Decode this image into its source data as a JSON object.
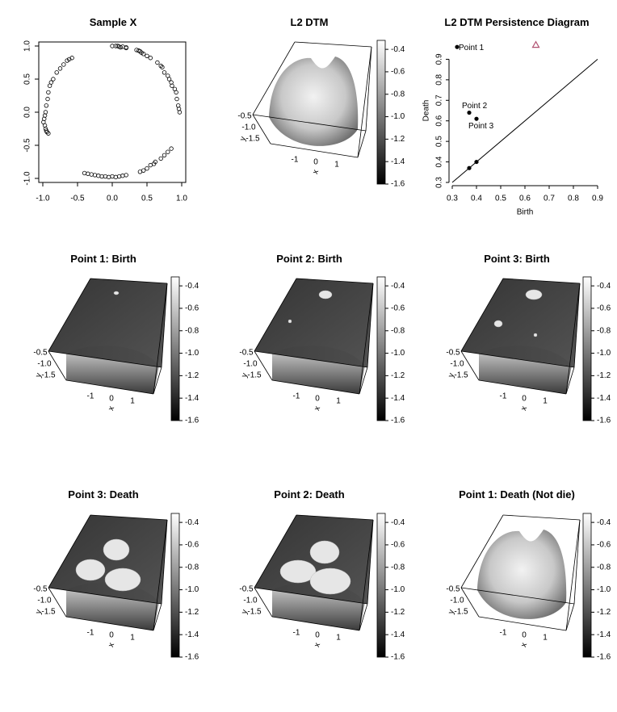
{
  "panels": {
    "sample": {
      "title": "Sample X"
    },
    "dtm": {
      "title": "L2 DTM"
    },
    "pd": {
      "title": "L2 DTM Persistence Diagram"
    },
    "b1": {
      "title": "Point 1: Birth"
    },
    "b2": {
      "title": "Point 2: Birth"
    },
    "b3": {
      "title": "Point 3: Birth"
    },
    "d3": {
      "title": "Point 3: Death"
    },
    "d2": {
      "title": "Point 2: Death"
    },
    "d1": {
      "title": "Point 1: Death (Not die)"
    }
  },
  "colorbar": {
    "ticks": [
      "-0.4",
      "-0.6",
      "-0.8",
      "-1.0",
      "-1.2",
      "-1.4",
      "-1.6"
    ]
  },
  "surface_axis": {
    "y_ticks": [
      "-0.5",
      "-1.0",
      "-1.5"
    ],
    "x_ticks": [
      "-1",
      "0",
      "1"
    ],
    "x_label": "x",
    "y_label": "y"
  },
  "chart_data": [
    {
      "type": "scatter",
      "title": "Sample X",
      "xlim": [
        -1,
        1
      ],
      "ylim": [
        -1,
        1
      ],
      "x_ticks": [
        "-1.0",
        "-0.5",
        "0.0",
        "0.5",
        "1.0"
      ],
      "y_ticks": [
        "-1.0",
        "-0.5",
        "0.0",
        "0.5",
        "1.0"
      ],
      "x": [
        0.0,
        0.05,
        0.08,
        0.1,
        0.12,
        0.15,
        0.2,
        0.2,
        0.35,
        0.38,
        0.4,
        0.42,
        0.45,
        0.5,
        0.55,
        0.65,
        0.7,
        0.72,
        0.75,
        0.8,
        0.82,
        0.85,
        0.86,
        0.9,
        0.92,
        0.93,
        0.95,
        0.96,
        0.97,
        -0.58,
        -0.62,
        -0.65,
        -0.7,
        -0.75,
        -0.8,
        -0.85,
        -0.88,
        -0.9,
        -0.92,
        -0.93,
        -0.95,
        -0.96,
        -0.97,
        -0.98,
        -0.99,
        -0.97,
        -0.96,
        -0.95,
        -0.94,
        -0.92,
        0.4,
        0.45,
        0.5,
        0.55,
        0.6,
        0.62,
        0.7,
        0.75,
        0.8,
        0.85,
        0.0,
        0.05,
        0.1,
        0.15,
        0.2,
        -0.05,
        -0.1,
        -0.15,
        -0.2,
        -0.25,
        -0.3,
        -0.35,
        -0.4
      ],
      "y": [
        1.0,
        1.0,
        1.0,
        0.99,
        0.98,
        0.99,
        0.98,
        0.97,
        0.94,
        0.93,
        0.92,
        0.9,
        0.88,
        0.85,
        0.82,
        0.75,
        0.7,
        0.68,
        0.6,
        0.55,
        0.5,
        0.45,
        0.4,
        0.35,
        0.3,
        0.2,
        0.1,
        0.05,
        0.0,
        0.82,
        0.8,
        0.78,
        0.72,
        0.66,
        0.6,
        0.5,
        0.45,
        0.4,
        0.3,
        0.2,
        0.1,
        0.0,
        -0.05,
        -0.1,
        -0.15,
        -0.2,
        -0.25,
        -0.28,
        -0.3,
        -0.32,
        -0.9,
        -0.88,
        -0.85,
        -0.8,
        -0.78,
        -0.75,
        -0.7,
        -0.65,
        -0.6,
        -0.55,
        -0.97,
        -0.98,
        -0.97,
        -0.96,
        -0.95,
        -0.98,
        -0.97,
        -0.97,
        -0.96,
        -0.95,
        -0.94,
        -0.93,
        -0.92
      ]
    },
    {
      "type": "surface",
      "title": "L2 DTM",
      "colorbar_ticks": [
        "-0.4",
        "-0.6",
        "-0.8",
        "-1.0",
        "-1.2",
        "-1.4",
        "-1.6"
      ]
    },
    {
      "type": "scatter",
      "title": "L2 DTM Persistence Diagram",
      "xlabel": "Birth",
      "ylabel": "Death",
      "xlim": [
        0.3,
        0.9
      ],
      "ylim": [
        0.3,
        1.0
      ],
      "x_ticks": [
        "0.3",
        "0.4",
        "0.5",
        "0.6",
        "0.7",
        "0.8",
        "0.9"
      ],
      "y_ticks": [
        "0.3",
        "0.4",
        "0.5",
        "0.6",
        "0.7",
        "0.8",
        "0.9"
      ],
      "points": [
        {
          "x": 0.32,
          "y": 0.96,
          "label": "Point 1",
          "shape": "dot"
        },
        {
          "x": 0.37,
          "y": 0.64,
          "label": "Point 2",
          "shape": "dot"
        },
        {
          "x": 0.4,
          "y": 0.61,
          "label": "Point 3",
          "shape": "dot"
        },
        {
          "x": 0.37,
          "y": 0.37,
          "label": "",
          "shape": "dot"
        },
        {
          "x": 0.4,
          "y": 0.4,
          "label": "",
          "shape": "dot"
        },
        {
          "x": 0.645,
          "y": 0.97,
          "label": "",
          "shape": "triangle"
        }
      ],
      "diagonal": true,
      "triangle_color": "#b05070"
    }
  ]
}
